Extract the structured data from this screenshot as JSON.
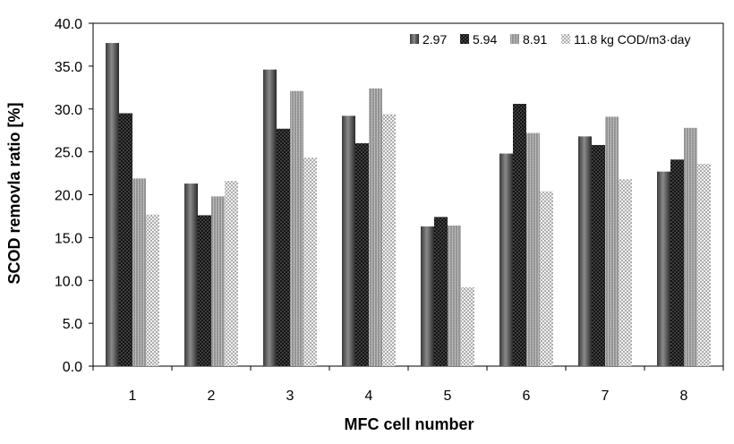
{
  "chart_data": {
    "type": "bar",
    "xlabel": "MFC cell number",
    "ylabel": "SCOD removla ratio [%]",
    "ylim": [
      0,
      40
    ],
    "ytick_values": [
      0,
      5,
      10,
      15,
      20,
      25,
      30,
      35,
      40
    ],
    "ytick_labels": [
      "0.0",
      "5.0",
      "10.0",
      "15.0",
      "20.0",
      "25.0",
      "30.0",
      "35.0",
      "40.0"
    ],
    "categories": [
      "1",
      "2",
      "3",
      "4",
      "5",
      "6",
      "7",
      "8"
    ],
    "legend_position": "top-right",
    "grid": false,
    "series": [
      {
        "name": "2.97",
        "pattern": "gradient-gray",
        "values": [
          37.7,
          21.3,
          34.6,
          29.2,
          16.3,
          24.8,
          26.8,
          22.7
        ]
      },
      {
        "name": "5.94",
        "pattern": "crosshatch-dark",
        "values": [
          29.5,
          17.6,
          27.7,
          26.0,
          17.4,
          30.6,
          25.8,
          24.1
        ]
      },
      {
        "name": "8.91",
        "pattern": "gradient-light",
        "values": [
          21.9,
          19.8,
          32.1,
          32.4,
          16.4,
          27.2,
          29.1,
          27.8
        ]
      },
      {
        "name": "11.8 kg COD/m3·day",
        "pattern": "dotted",
        "values": [
          17.7,
          21.6,
          24.3,
          29.4,
          9.2,
          20.4,
          21.8,
          23.6
        ]
      }
    ]
  }
}
